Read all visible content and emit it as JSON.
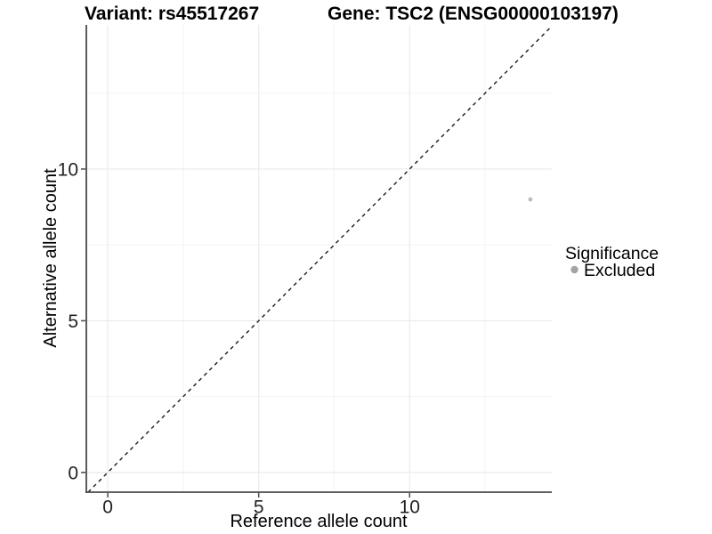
{
  "titles": {
    "variant": "Variant: rs45517267",
    "gene": "Gene: TSC2 (ENSG00000103197)"
  },
  "axes": {
    "x_label": "Reference allele count",
    "y_label": "Alternative allele count"
  },
  "legend": {
    "title": "Significance",
    "entries": [
      {
        "label": "Excluded",
        "color": "#a4a4a4"
      }
    ]
  },
  "chart_data": {
    "type": "scatter",
    "title": "Variant: rs45517267   Gene: TSC2 (ENSG00000103197)",
    "xlabel": "Reference allele count",
    "ylabel": "Alternative allele count",
    "xlim": [
      -0.71,
      14.71
    ],
    "ylim": [
      -0.65,
      14.75
    ],
    "x_major_ticks": [
      0,
      5,
      10
    ],
    "y_major_ticks": [
      0,
      5,
      10
    ],
    "x_minor_ticks": [
      2.5,
      7.5,
      12.5
    ],
    "y_minor_ticks": [
      2.5,
      7.5,
      12.5
    ],
    "grid": true,
    "legend_position": "right",
    "identity_line": {
      "show": true,
      "style": "dashed",
      "color": "#1a1a1a"
    },
    "series": [
      {
        "name": "Excluded",
        "points": [
          {
            "x": 14,
            "y": 9
          }
        ],
        "color": "#bcbcbc",
        "point_radius": 2.4
      }
    ],
    "colors": {
      "grid_major": "#ebebeb",
      "grid_minor": "#f4f4f4",
      "axis_line": "#4a4a4a",
      "tick_mark": "#4a4a4a",
      "tick_label": "#222222",
      "background": "#ffffff"
    }
  }
}
